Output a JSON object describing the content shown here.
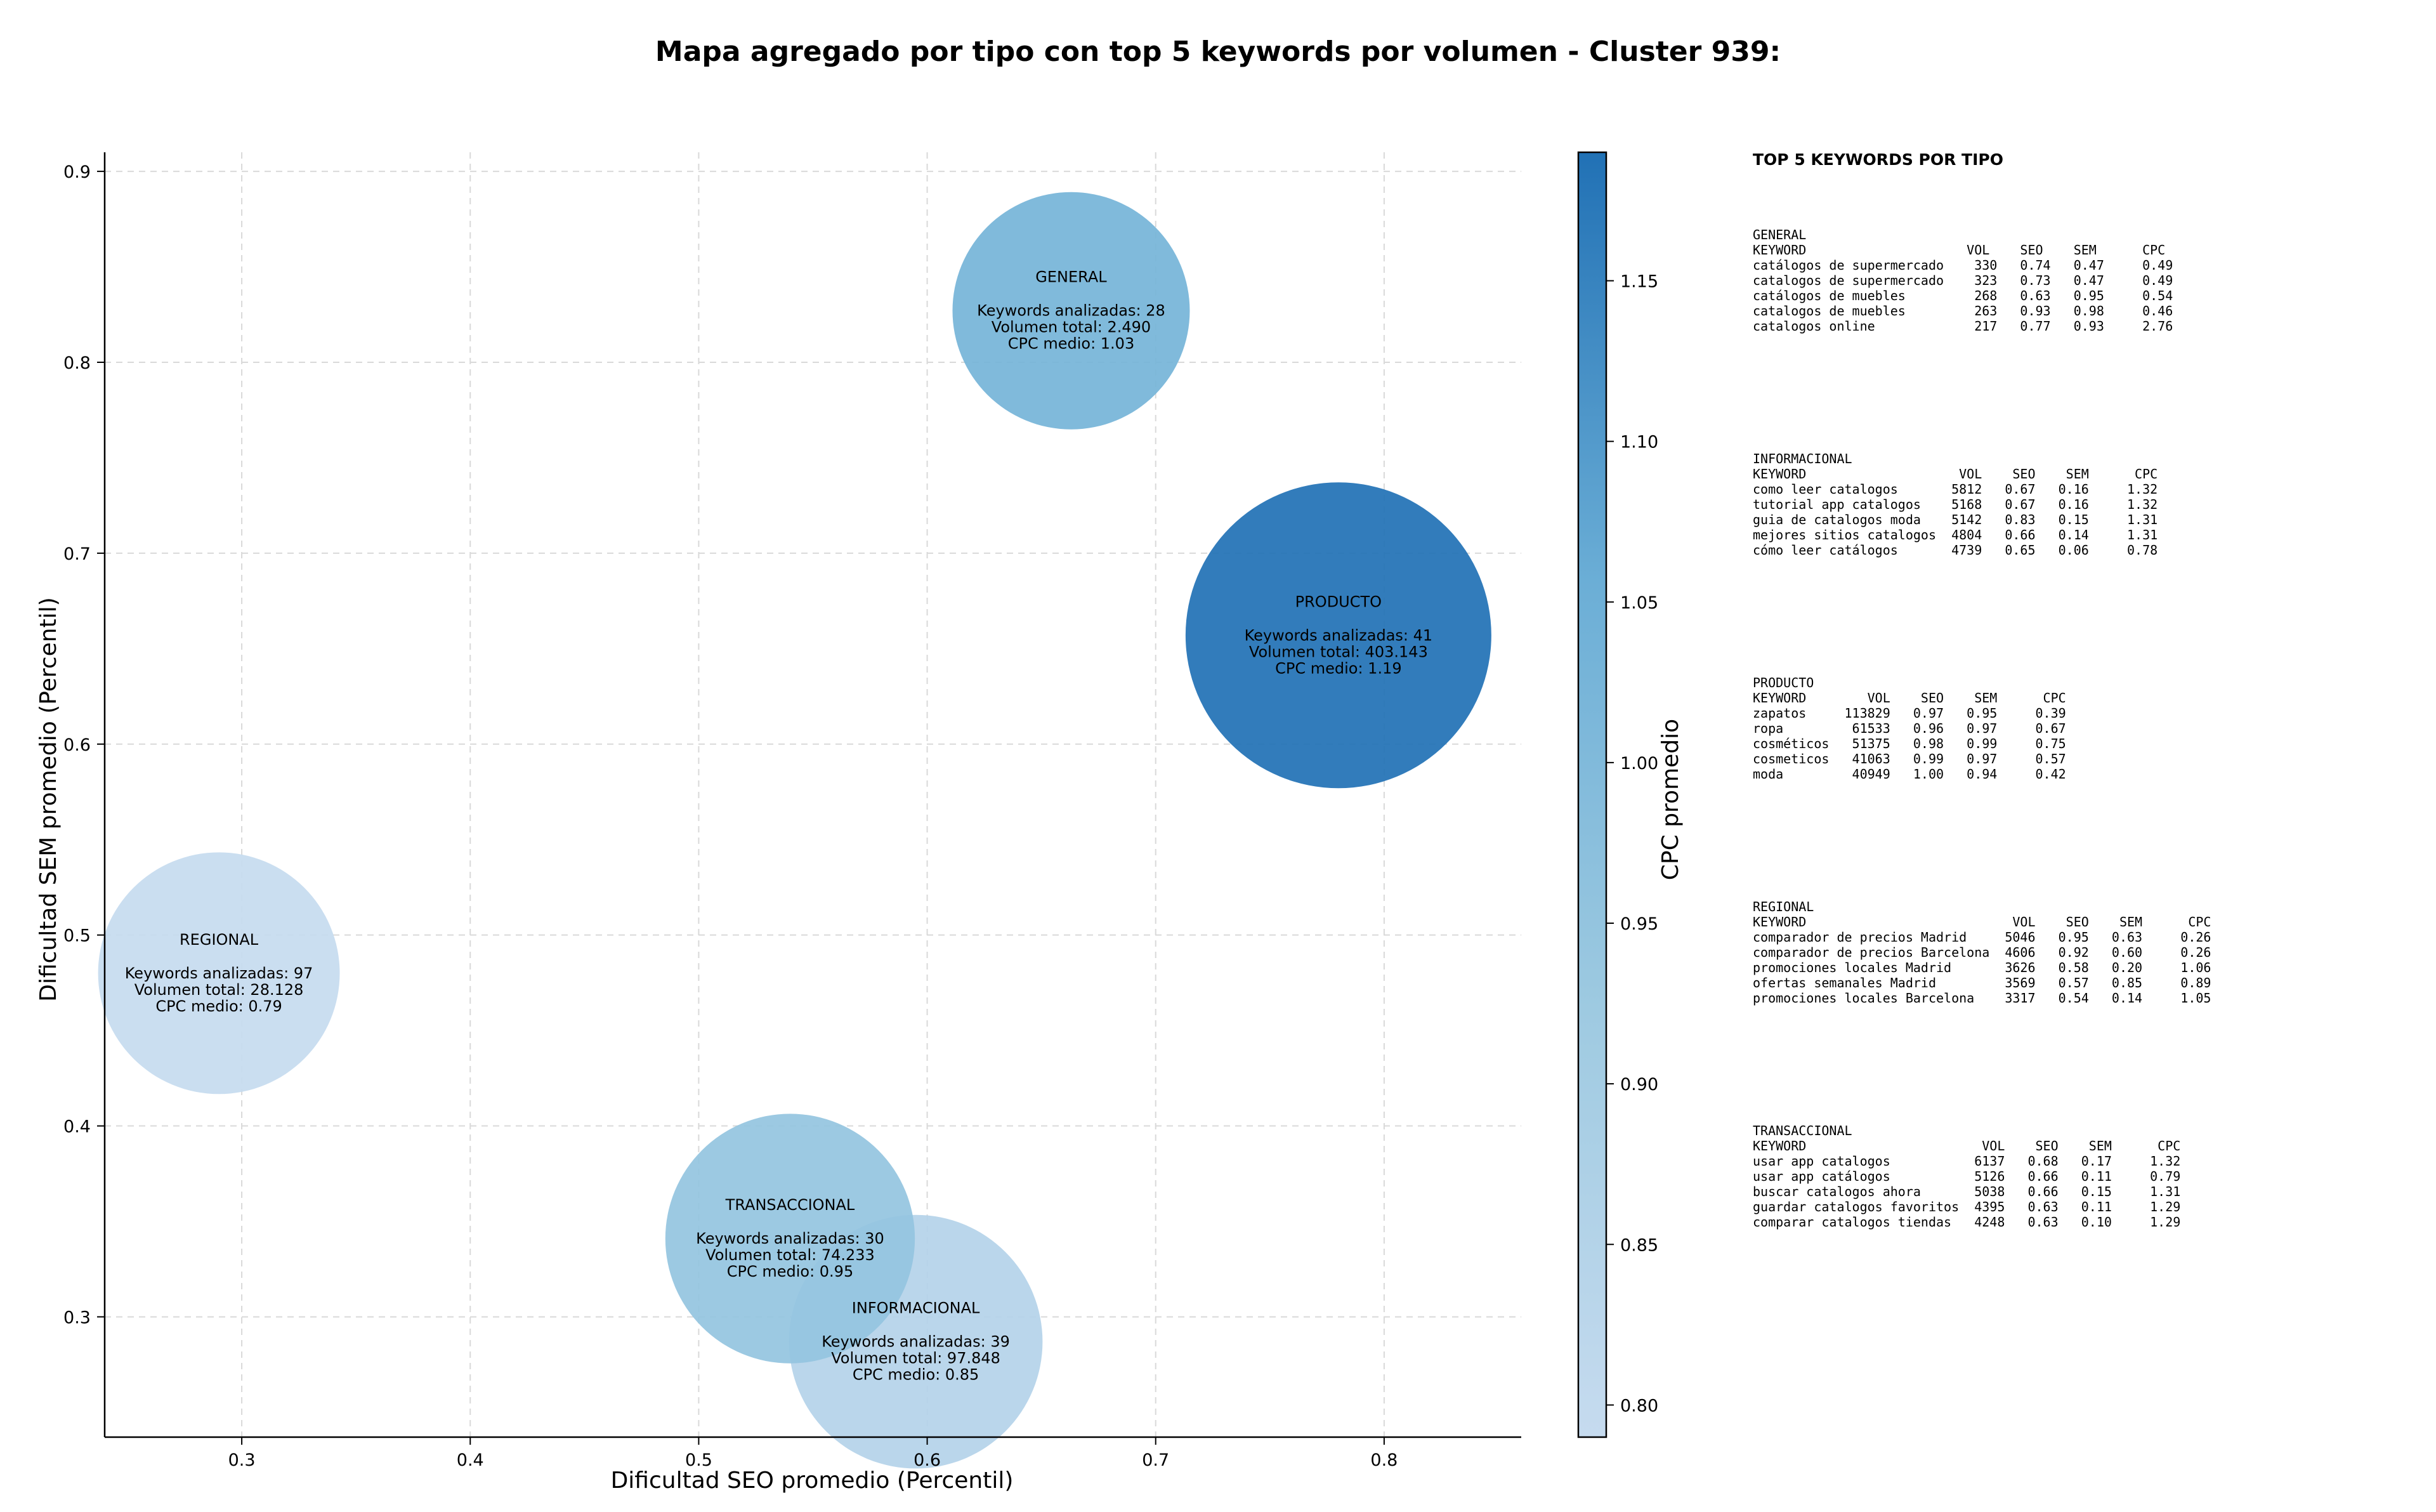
{
  "chart_data": {
    "type": "scatter",
    "title": "Mapa agregado por tipo con top 5 keywords por volumen - Cluster 939:",
    "xlabel": "Dificultad SEO promedio (Percentil)",
    "ylabel": "Dificultad SEM promedio (Percentil)",
    "xlim": [
      0.24,
      0.86
    ],
    "ylim": [
      0.237,
      0.91
    ],
    "xticks": [
      "0.3",
      "0.4",
      "0.5",
      "0.6",
      "0.7",
      "0.8"
    ],
    "yticks": [
      "0.3",
      "0.4",
      "0.5",
      "0.6",
      "0.7",
      "0.8",
      "0.9"
    ],
    "grid": true,
    "colorbar": {
      "label": "CPC promedio",
      "range": [
        0.79,
        1.19
      ],
      "ticks": [
        "0.80",
        "0.85",
        "0.90",
        "0.95",
        "1.00",
        "1.05",
        "1.10",
        "1.15"
      ],
      "colors": [
        "#c6dbef",
        "#9ecae1",
        "#6baed6",
        "#2171b5"
      ]
    },
    "points": [
      {
        "name": "GENERAL",
        "x": 0.663,
        "y": 0.827,
        "keywords": 28,
        "volume": 2490,
        "cpc": 1.03,
        "lines": [
          "Keywords analizadas: 28",
          "Volumen total: 2.490",
          "CPC medio: 1.03"
        ]
      },
      {
        "name": "PRODUCTO",
        "x": 0.78,
        "y": 0.657,
        "keywords": 41,
        "volume": 403143,
        "cpc": 1.19,
        "lines": [
          "Keywords analizadas: 41",
          "Volumen total: 403.143",
          "CPC medio: 1.19"
        ]
      },
      {
        "name": "REGIONAL",
        "x": 0.29,
        "y": 0.48,
        "keywords": 97,
        "volume": 28128,
        "cpc": 0.79,
        "lines": [
          "Keywords analizadas: 97",
          "Volumen total: 28.128",
          "CPC medio: 0.79"
        ]
      },
      {
        "name": "INFORMACIONAL",
        "x": 0.595,
        "y": 0.287,
        "keywords": 39,
        "volume": 97848,
        "cpc": 0.85,
        "lines": [
          "Keywords analizadas: 39",
          "Volumen total: 97.848",
          "CPC medio: 0.85"
        ]
      },
      {
        "name": "TRANSACCIONAL",
        "x": 0.54,
        "y": 0.341,
        "keywords": 30,
        "volume": 74233,
        "cpc": 0.95,
        "lines": [
          "Keywords analizadas: 30",
          "Volumen total: 74.233",
          "CPC medio: 0.95"
        ]
      }
    ]
  },
  "panel": {
    "title": "TOP 5 KEYWORDS POR TIPO",
    "blocks": [
      {
        "name": "GENERAL",
        "text": "GENERAL\nKEYWORD                     VOL    SEO    SEM      CPC\ncatálogos de supermercado    330   0.74   0.47     0.49\ncatalogos de supermercado    323   0.73   0.47     0.49\ncatálogos de muebles         268   0.63   0.95     0.54\ncatalogos de muebles         263   0.93   0.98     0.46\ncatalogos online             217   0.77   0.93     2.76"
      },
      {
        "name": "INFORMACIONAL",
        "text": "INFORMACIONAL\nKEYWORD                    VOL    SEO    SEM      CPC\ncomo leer catalogos       5812   0.67   0.16     1.32\ntutorial app catalogos    5168   0.67   0.16     1.32\nguia de catalogos moda    5142   0.83   0.15     1.31\nmejores sitios catalogos  4804   0.66   0.14     1.31\ncómo leer catálogos       4739   0.65   0.06     0.78"
      },
      {
        "name": "PRODUCTO",
        "text": "PRODUCTO\nKEYWORD        VOL    SEO    SEM      CPC\nzapatos     113829   0.97   0.95     0.39\nropa         61533   0.96   0.97     0.67\ncosméticos   51375   0.98   0.99     0.75\ncosmeticos   41063   0.99   0.97     0.57\nmoda         40949   1.00   0.94     0.42"
      },
      {
        "name": "REGIONAL",
        "text": "REGIONAL\nKEYWORD                           VOL    SEO    SEM      CPC\ncomparador de precios Madrid     5046   0.95   0.63     0.26\ncomparador de precios Barcelona  4606   0.92   0.60     0.26\npromociones locales Madrid       3626   0.58   0.20     1.06\nofertas semanales Madrid         3569   0.57   0.85     0.89\npromociones locales Barcelona    3317   0.54   0.14     1.05"
      },
      {
        "name": "TRANSACCIONAL",
        "text": "TRANSACCIONAL\nKEYWORD                       VOL    SEO    SEM      CPC\nusar app catalogos           6137   0.68   0.17     1.32\nusar app catálogos           5126   0.66   0.11     0.79\nbuscar catalogos ahora       5038   0.66   0.15     1.31\nguardar catalogos favoritos  4395   0.63   0.11     1.29\ncomparar catalogos tiendas   4248   0.63   0.10     1.29"
      }
    ]
  }
}
